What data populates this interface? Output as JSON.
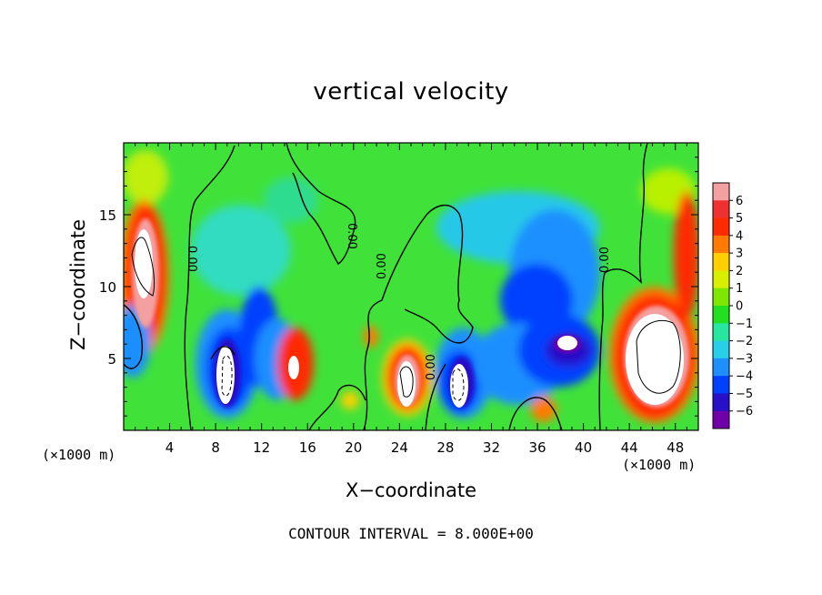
{
  "chart_data": {
    "type": "heatmap",
    "title": "vertical velocity",
    "xlabel": "X−coordinate",
    "ylabel": "Z−coordinate",
    "x_unit_left": "(×1000 m)",
    "x_unit_right": "(×1000 m)",
    "xlim": [
      0,
      50
    ],
    "ylim": [
      0,
      20
    ],
    "xticks": [
      "4",
      "8",
      "12",
      "16",
      "20",
      "24",
      "28",
      "32",
      "36",
      "40",
      "44",
      "48"
    ],
    "yticks": [
      "5",
      "10",
      "15"
    ],
    "colorbar": {
      "range": [
        -6,
        6
      ],
      "labels": [
        "6",
        "5",
        "4",
        "3",
        "2",
        "1",
        "0",
        "−1",
        "−2",
        "−3",
        "−4",
        "−5",
        "−6"
      ],
      "colors": [
        "#f4a0a0",
        "#f03030",
        "#ff2a00",
        "#ff7a00",
        "#ffcf00",
        "#d8f000",
        "#7ee600",
        "#22e020",
        "#26e6a0",
        "#28cfe8",
        "#1e8fff",
        "#0040ff",
        "#2810c8",
        "#7000a8"
      ]
    },
    "contour_label": "0.00",
    "contour_interval_text": "CONTOUR INTERVAL = 8.000E+00",
    "features": [
      {
        "x": 1.8,
        "z": 12,
        "value": 8,
        "note": "strong updraft near left edge"
      },
      {
        "x": 9,
        "z": 4,
        "value": -8,
        "note": "strong downdraft"
      },
      {
        "x": 14.5,
        "z": 4.5,
        "value": -8
      },
      {
        "x": 24.5,
        "z": 3,
        "value": 8
      },
      {
        "x": 29.5,
        "z": 3.5,
        "value": -8
      },
      {
        "x": 38.5,
        "z": 6,
        "value": -8
      },
      {
        "x": 46,
        "z": 5.5,
        "value": 8,
        "note": "strong updraft"
      }
    ]
  }
}
